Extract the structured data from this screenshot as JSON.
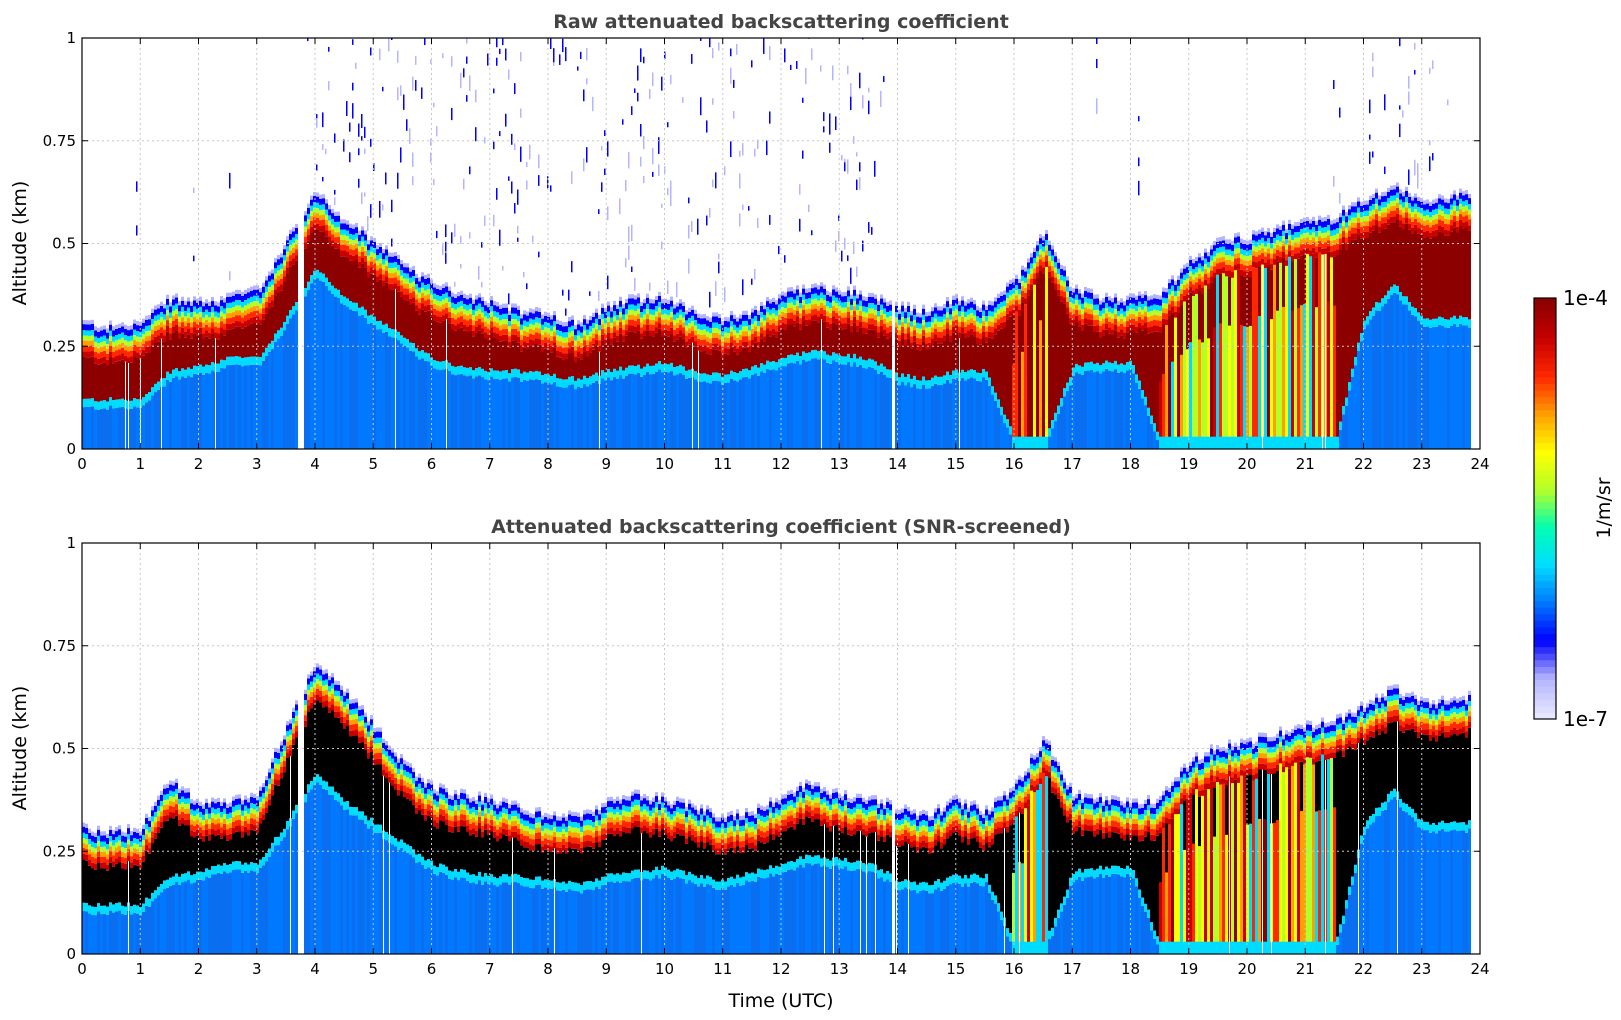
{
  "colors": {
    "colormap": [
      "#e6e6ff",
      "#b4b4ff",
      "#0000ff",
      "#0078ff",
      "#00dcff",
      "#00ffb4",
      "#b4ff28",
      "#ffff00",
      "#ffa000",
      "#ff2800",
      "#c80000",
      "#8c0000"
    ],
    "screened_fill": "#000000",
    "background": "#ffffff"
  },
  "chart_data": [
    {
      "type": "heatmap",
      "title": "Raw attenuated backscattering coefficient",
      "xlabel": "",
      "ylabel": "Altitude (km)",
      "xlim": [
        0,
        24
      ],
      "ylim": [
        0,
        1
      ],
      "xticks": [
        0,
        1,
        2,
        3,
        4,
        5,
        6,
        7,
        8,
        9,
        10,
        11,
        12,
        13,
        14,
        15,
        16,
        17,
        18,
        19,
        20,
        21,
        22,
        23,
        24
      ],
      "xtick_labels": [
        "0",
        "1",
        "2",
        "3",
        "4",
        "5",
        "6",
        "7",
        "8",
        "9",
        "10",
        "11",
        "12",
        "13",
        "14",
        "15",
        "16",
        "17",
        "18",
        "19",
        "20",
        "21",
        "22",
        "23",
        "24"
      ],
      "yticks": [
        0,
        0.25,
        0.5,
        0.75,
        1
      ],
      "ytick_labels": [
        "0",
        "0.25",
        "0.5",
        "0.75",
        "1"
      ],
      "grid": true,
      "snr_screened": false,
      "noise_above_layer": true,
      "time_utc": [
        0,
        0.5,
        1,
        1.5,
        2,
        2.5,
        3,
        3.5,
        4,
        4.5,
        5,
        5.5,
        6,
        6.5,
        7,
        7.5,
        8,
        8.5,
        9,
        9.5,
        10,
        10.5,
        11,
        11.5,
        12,
        12.5,
        13,
        13.5,
        14,
        14.5,
        15,
        15.5,
        16,
        16.5,
        17,
        17.5,
        18,
        18.5,
        19,
        19.5,
        20,
        20.5,
        21,
        21.5,
        22,
        22.5,
        23,
        23.5,
        23.8
      ],
      "layer_top_km": [
        0.3,
        0.29,
        0.3,
        0.36,
        0.35,
        0.36,
        0.38,
        0.5,
        0.62,
        0.55,
        0.5,
        0.44,
        0.4,
        0.37,
        0.35,
        0.33,
        0.32,
        0.3,
        0.34,
        0.36,
        0.36,
        0.33,
        0.31,
        0.33,
        0.37,
        0.39,
        0.38,
        0.37,
        0.34,
        0.33,
        0.36,
        0.34,
        0.4,
        0.52,
        0.38,
        0.36,
        0.36,
        0.37,
        0.45,
        0.5,
        0.51,
        0.53,
        0.55,
        0.56,
        0.6,
        0.63,
        0.6,
        0.61,
        0.62
      ],
      "layer_base_km": [
        0.1,
        0.1,
        0.1,
        0.17,
        0.18,
        0.2,
        0.2,
        0.3,
        0.42,
        0.35,
        0.3,
        0.25,
        0.2,
        0.18,
        0.17,
        0.17,
        0.16,
        0.15,
        0.17,
        0.18,
        0.19,
        0.17,
        0.16,
        0.18,
        0.2,
        0.22,
        0.21,
        0.2,
        0.16,
        0.15,
        0.17,
        0.17,
        0.0,
        0.0,
        0.18,
        0.19,
        0.19,
        0.0,
        0.0,
        0.0,
        0.0,
        0.0,
        0.0,
        0.0,
        0.3,
        0.38,
        0.3,
        0.3,
        0.3
      ]
    },
    {
      "type": "heatmap",
      "title": "Attenuated backscattering coefficient (SNR-screened)",
      "xlabel": "Time (UTC)",
      "ylabel": "Altitude (km)",
      "xlim": [
        0,
        24
      ],
      "ylim": [
        0,
        1
      ],
      "xticks": [
        0,
        1,
        2,
        3,
        4,
        5,
        6,
        7,
        8,
        9,
        10,
        11,
        12,
        13,
        14,
        15,
        16,
        17,
        18,
        19,
        20,
        21,
        22,
        23,
        24
      ],
      "xtick_labels": [
        "0",
        "1",
        "2",
        "3",
        "4",
        "5",
        "6",
        "7",
        "8",
        "9",
        "10",
        "11",
        "12",
        "13",
        "14",
        "15",
        "16",
        "17",
        "18",
        "19",
        "20",
        "21",
        "22",
        "23",
        "24"
      ],
      "yticks": [
        0,
        0.25,
        0.5,
        0.75,
        1
      ],
      "ytick_labels": [
        "0",
        "0.25",
        "0.5",
        "0.75",
        "1"
      ],
      "grid": true,
      "snr_screened": true,
      "noise_above_layer": false,
      "time_utc": [
        0,
        0.5,
        1,
        1.5,
        2,
        2.5,
        3,
        3.5,
        4,
        4.5,
        5,
        5.5,
        6,
        6.5,
        7,
        7.5,
        8,
        8.5,
        9,
        9.5,
        10,
        10.5,
        11,
        11.5,
        12,
        12.5,
        13,
        13.5,
        14,
        14.5,
        15,
        15.5,
        16,
        16.5,
        17,
        17.5,
        18,
        18.5,
        19,
        19.5,
        20,
        20.5,
        21,
        21.5,
        22,
        22.5,
        23,
        23.5,
        23.8
      ],
      "layer_top_km": [
        0.3,
        0.29,
        0.3,
        0.42,
        0.36,
        0.36,
        0.38,
        0.55,
        0.7,
        0.63,
        0.55,
        0.46,
        0.4,
        0.38,
        0.37,
        0.35,
        0.33,
        0.33,
        0.36,
        0.38,
        0.37,
        0.35,
        0.33,
        0.34,
        0.38,
        0.41,
        0.38,
        0.37,
        0.35,
        0.33,
        0.37,
        0.34,
        0.4,
        0.52,
        0.38,
        0.37,
        0.36,
        0.37,
        0.46,
        0.5,
        0.51,
        0.53,
        0.55,
        0.56,
        0.6,
        0.64,
        0.61,
        0.61,
        0.62
      ],
      "layer_base_km": [
        0.1,
        0.1,
        0.1,
        0.17,
        0.18,
        0.2,
        0.2,
        0.3,
        0.42,
        0.35,
        0.3,
        0.25,
        0.2,
        0.18,
        0.17,
        0.17,
        0.16,
        0.15,
        0.17,
        0.18,
        0.19,
        0.17,
        0.16,
        0.18,
        0.2,
        0.22,
        0.21,
        0.2,
        0.16,
        0.15,
        0.17,
        0.17,
        0.0,
        0.0,
        0.18,
        0.19,
        0.19,
        0.0,
        0.0,
        0.0,
        0.0,
        0.0,
        0.0,
        0.0,
        0.3,
        0.38,
        0.3,
        0.3,
        0.3
      ]
    }
  ],
  "colorbar": {
    "label": "1/m/sr",
    "max_label": "1e-4",
    "min_label": "1e-7",
    "scale": "log",
    "vmin": 1e-07,
    "vmax": 0.0001
  }
}
